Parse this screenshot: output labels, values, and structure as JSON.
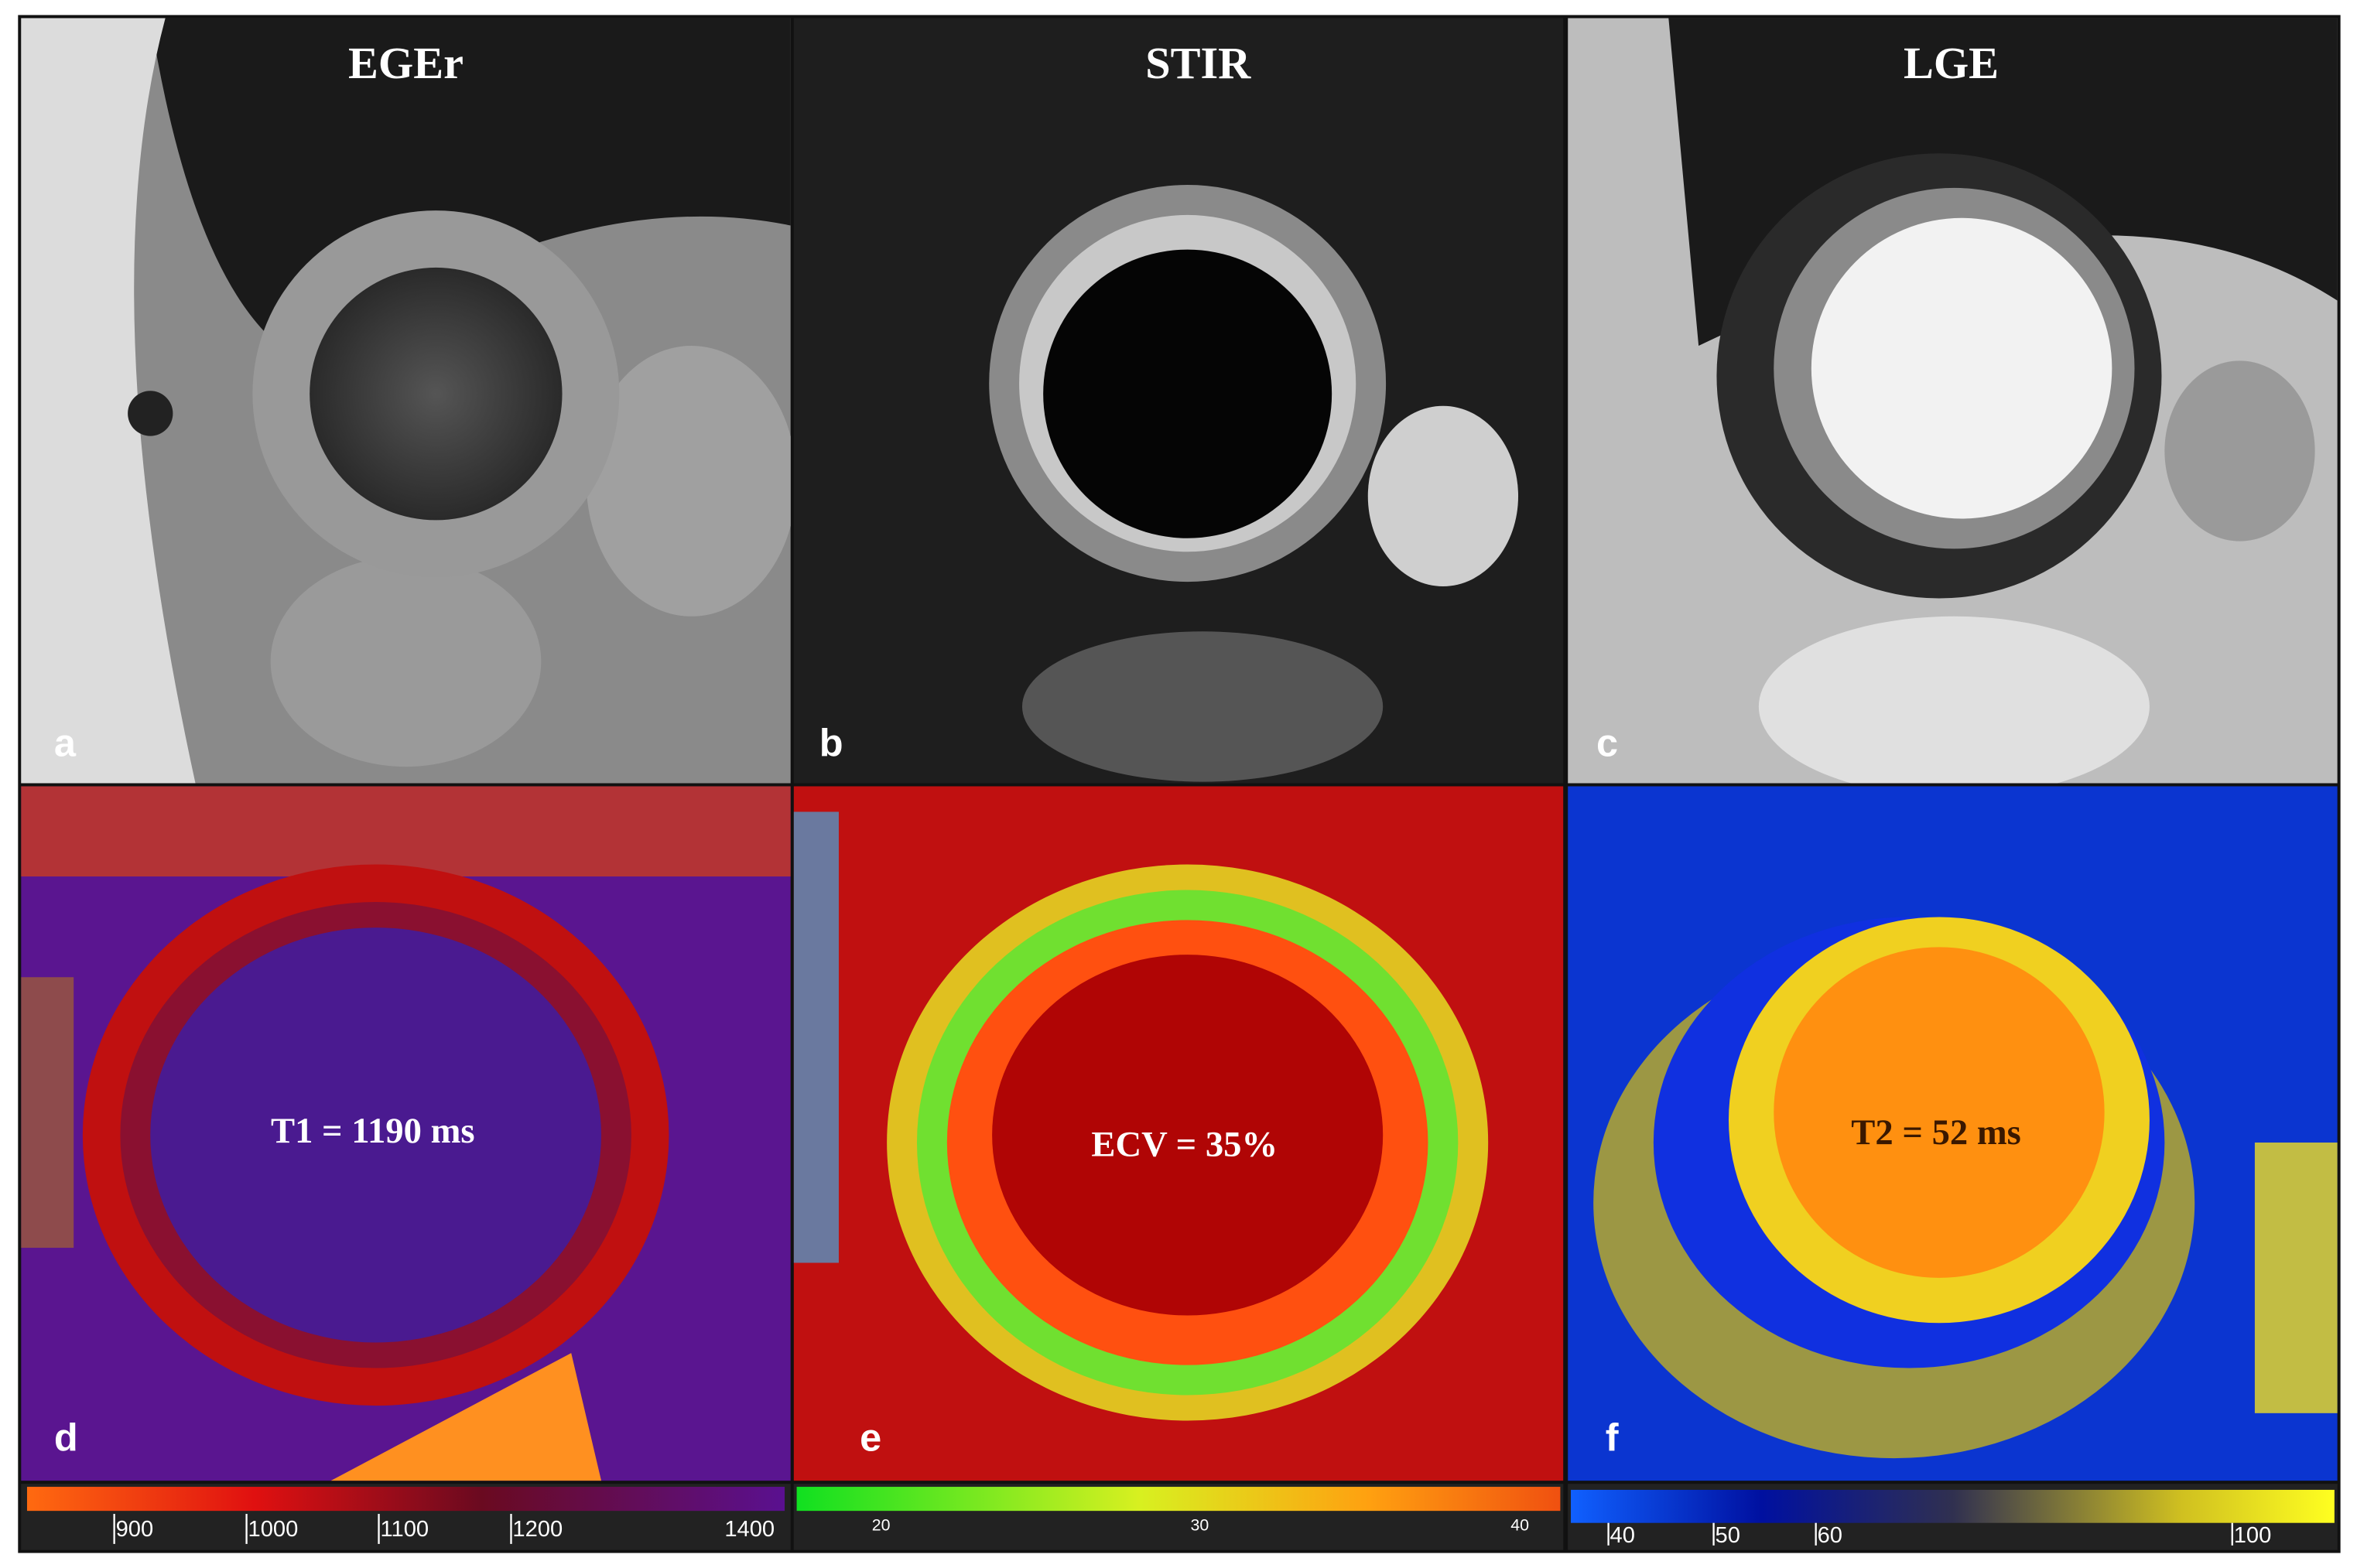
{
  "panels": [
    {
      "letter": "a",
      "title": "EGEr"
    },
    {
      "letter": "b",
      "title": "STIR"
    },
    {
      "letter": "c",
      "title": "LGE"
    },
    {
      "letter": "d",
      "label": "T1 = 1190 ms",
      "colorbar_ticks": [
        900,
        1000,
        1100,
        1200,
        1400
      ]
    },
    {
      "letter": "e",
      "label": "ECV = 35%",
      "colorbar_ticks": [
        20,
        30,
        40
      ]
    },
    {
      "letter": "f",
      "label": "T2 = 52 ms",
      "colorbar_ticks": [
        40,
        50,
        60,
        100
      ]
    }
  ]
}
